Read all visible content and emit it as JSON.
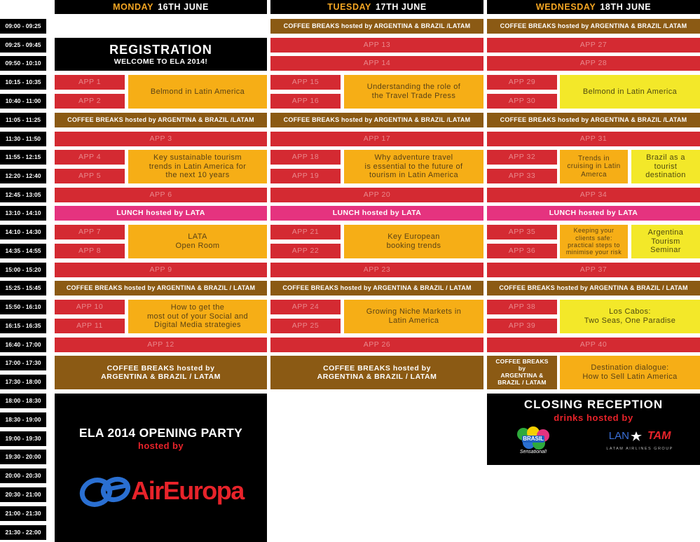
{
  "days": [
    {
      "weekday": "MONDAY",
      "date": "16TH JUNE"
    },
    {
      "weekday": "TUESDAY",
      "date": "17TH JUNE"
    },
    {
      "weekday": "WEDNESDAY",
      "date": "18TH JUNE"
    }
  ],
  "times": [
    "09:00 - 09:25",
    "09:25 - 09:45",
    "09:50 - 10:10",
    "10:15 - 10:35",
    "10:40 - 11:00",
    "11:05 - 11:25",
    "11:30 - 11:50",
    "11:55 - 12:15",
    "12:20 - 12:40",
    "12:45 - 13:05",
    "13:10 - 14:10",
    "14:10 - 14:30",
    "14:35 - 14:55",
    "15:00 - 15:20",
    "15:25 - 15:45",
    "15:50 - 16:10",
    "16:15 - 16:35",
    "16:40 - 17:00",
    "17:00 - 17:30",
    "17:30 - 18:00",
    "18:00 - 18:30",
    "18:30 - 19:00",
    "19:00 - 19:30",
    "19:30 - 20:00",
    "20:00 - 20:30",
    "20:30 - 21:00",
    "21:00 - 21:30",
    "21:30 - 22:00"
  ],
  "registration": {
    "title": "REGISTRATION",
    "subtitle": "WELCOME TO ELA 2014!"
  },
  "coffee_short": "COFFEE BREAKS hosted by ARGENTINA & BRAZIL /LATAM",
  "coffee_mid": "COFFEE BREAKS hosted by ARGENTINA & BRAZIL / LATAM",
  "coffee_big": [
    "COFFEE BREAKS hosted by",
    "ARGENTINA & BRAZIL / LATAM"
  ],
  "coffee_narrow": [
    "COFFEE BREAKS",
    "by",
    "ARGENTINA &",
    "BRAZIL / LATAM"
  ],
  "lunch": "LUNCH hosted by LATA",
  "apps": {
    "a1": "APP 1",
    "a2": "APP 2",
    "a3": "APP 3",
    "a4": "APP 4",
    "a5": "APP 5",
    "a6": "APP 6",
    "a7": "APP 7",
    "a8": "APP 8",
    "a9": "APP 9",
    "a10": "APP 10",
    "a11": "APP 11",
    "a12": "APP 12",
    "a13": "APP 13",
    "a14": "APP 14",
    "a15": "APP 15",
    "a16": "APP 16",
    "a17": "APP 17",
    "a18": "APP 18",
    "a19": "APP 19",
    "a20": "APP 20",
    "a21": "APP 21",
    "a22": "APP 22",
    "a23": "APP 23",
    "a24": "APP 24",
    "a25": "APP 25",
    "a26": "APP 26",
    "a27": "APP 27",
    "a28": "APP 28",
    "a29": "APP 29",
    "a30": "APP 30",
    "a31": "APP 31",
    "a32": "APP 32",
    "a33": "APP 33",
    "a34": "APP 34",
    "a35": "APP 35",
    "a36": "APP 36",
    "a37": "APP 37",
    "a38": "APP 38",
    "a39": "APP 39",
    "a40": "APP 40"
  },
  "sessions": {
    "mon_belmond": "Belmond in Latin America",
    "mon_sustainable": [
      "Key sustainable tourism",
      "trends in Latin America for",
      "the next 10 years"
    ],
    "mon_lata": [
      "LATA",
      "Open Room"
    ],
    "mon_social": [
      "How to get the",
      "most out of your Social and",
      "Digital Media strategies"
    ],
    "tue_travel_press": [
      "Understanding the role of",
      "the Travel Trade Press"
    ],
    "tue_adventure": [
      "Why adventure travel",
      "is essential to the future of",
      "tourism in Latin America"
    ],
    "tue_european": [
      "Key European",
      "booking trends"
    ],
    "tue_niche": [
      "Growing Niche Markets in",
      "Latin America"
    ],
    "wed_belmond": "Belmond in Latin America",
    "wed_cruising": [
      "Trends in",
      "cruising in Latin",
      "Amerca"
    ],
    "wed_brazil": [
      "Brazil as a",
      "tourist",
      "destination"
    ],
    "wed_clients": [
      "Keeping your",
      "clients safe:",
      "practical steps to",
      "minimise your risk"
    ],
    "wed_argentina": [
      "Argentina",
      "Tourism",
      "Seminar"
    ],
    "wed_loscabos": [
      "Los Cabos:",
      "Two Seas, One Paradise"
    ],
    "wed_dialogue": [
      "Destination dialogue:",
      "How to Sell Latin America"
    ]
  },
  "opening_party": {
    "title": "ELA 2014 OPENING PARTY",
    "hosted": "hosted by",
    "logo_text": "AirEuropa"
  },
  "closing": {
    "title": "CLOSING RECEPTION",
    "hosted": "drinks hosted by",
    "brasil_logo": "BRASIL",
    "brasil_tagline": "Sensational!",
    "lan": "LAN",
    "tam": "TAM",
    "group": "LATAM AIRLINES GROUP"
  },
  "colors": {
    "red": "#d42a32",
    "orange": "#f6ae16",
    "yellow": "#f3e829",
    "brown": "#8b5a14",
    "pink": "#e5337f",
    "header_accent": "#f5a623"
  }
}
